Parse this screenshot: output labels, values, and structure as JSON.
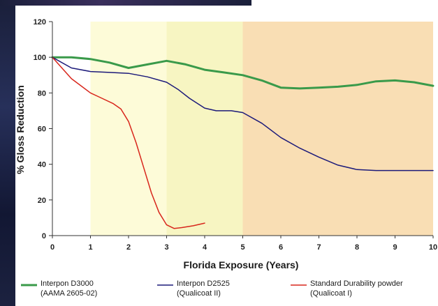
{
  "chart_data": {
    "type": "line",
    "title": "",
    "xlabel": "Florida  Exposure (Years)",
    "ylabel": "% Gloss Reduction",
    "xlim": [
      0,
      10
    ],
    "ylim": [
      0,
      120
    ],
    "x_ticks": [
      "0",
      "1",
      "2",
      "3",
      "4",
      "5",
      "6",
      "7",
      "8",
      "9",
      "10"
    ],
    "y_ticks": [
      "0",
      "20",
      "40",
      "60",
      "80",
      "100",
      "120"
    ],
    "grid": false,
    "background_bands": [
      {
        "x_start": 0,
        "x_end": 1,
        "color": "#ffffff"
      },
      {
        "x_start": 1,
        "x_end": 3,
        "color": "#fdfbd8"
      },
      {
        "x_start": 3,
        "x_end": 5,
        "color": "#f7f5c2"
      },
      {
        "x_start": 5,
        "x_end": 10,
        "color": "#f9deb4"
      }
    ],
    "series": [
      {
        "name": "Interpon D3000",
        "sub": "(AAMA 2605-02)",
        "color": "#3a9a4a",
        "width": 3,
        "x": [
          0,
          0.5,
          1,
          1.5,
          2,
          2.5,
          3,
          3.5,
          4,
          4.5,
          5,
          5.5,
          6,
          6.5,
          7,
          7.5,
          8,
          8.5,
          9,
          9.5,
          10
        ],
        "y": [
          100,
          100,
          99,
          97,
          94,
          96,
          98,
          96,
          93,
          91.5,
          90,
          87,
          83,
          82.5,
          83,
          83.5,
          84.5,
          86.5,
          87,
          86,
          84
        ]
      },
      {
        "name": "Interpon D2525",
        "sub": "(Qualicoat II)",
        "color": "#1c1a7a",
        "width": 1.5,
        "x": [
          0,
          0.5,
          1,
          1.5,
          2,
          2.5,
          3,
          3.3,
          3.6,
          4,
          4.3,
          4.7,
          5,
          5.5,
          6,
          6.5,
          7,
          7.5,
          8,
          8.5,
          9,
          9.5,
          10
        ],
        "y": [
          100,
          94,
          92,
          91.5,
          91,
          89,
          86,
          82,
          77,
          71.5,
          70,
          70,
          69,
          63,
          55,
          49,
          44,
          39.5,
          37,
          36.5,
          36.5,
          36.5,
          36.5
        ]
      },
      {
        "name": "Standard Durability powder",
        "sub": "(Qualicoat I)",
        "color": "#d8261c",
        "width": 1.5,
        "x": [
          0,
          0.5,
          1,
          1.3,
          1.6,
          1.8,
          2,
          2.2,
          2.4,
          2.6,
          2.8,
          3,
          3.2,
          3.4,
          3.7,
          4
        ],
        "y": [
          100,
          88,
          80,
          77,
          74,
          71,
          64,
          52,
          38,
          24,
          13,
          6,
          4,
          4.5,
          5.5,
          7
        ]
      }
    ]
  }
}
